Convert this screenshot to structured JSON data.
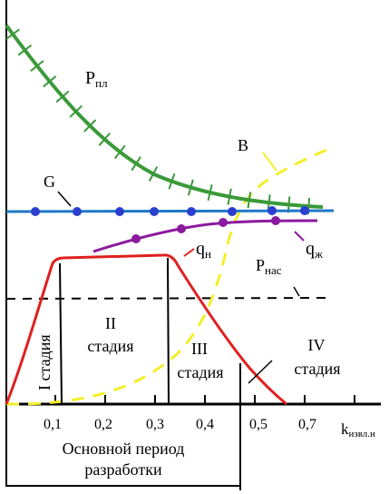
{
  "curves": {
    "p_pl": {
      "label": "P",
      "sub": "пл",
      "color": "#3a9a3a"
    },
    "b": {
      "label": "B",
      "color": "#f5ef2a"
    },
    "g": {
      "label": "G",
      "color": "#1f78c8",
      "marker_color": "#2a3fd0"
    },
    "q_zh": {
      "label": "q",
      "sub": "ж",
      "color": "#8b1a9e"
    },
    "q_n": {
      "label": "q",
      "sub": "н",
      "color": "#e02020"
    },
    "p_nas": {
      "label": "P",
      "sub": "нас",
      "color": "#000000"
    }
  },
  "stages": {
    "s1": "I стадия",
    "s2_num": "II",
    "s2_word": "стадия",
    "s3_num": "III",
    "s3_word": "стадия",
    "s4_num": "IV",
    "s4_word": "стадия"
  },
  "x_axis": {
    "ticks": [
      "0,1",
      "0,2",
      "0,3",
      "0,4",
      "0,5",
      "0,7"
    ],
    "label": "k",
    "label_sub": "извл.н"
  },
  "footer": {
    "line1": "Основной период",
    "line2": "разработки"
  }
}
